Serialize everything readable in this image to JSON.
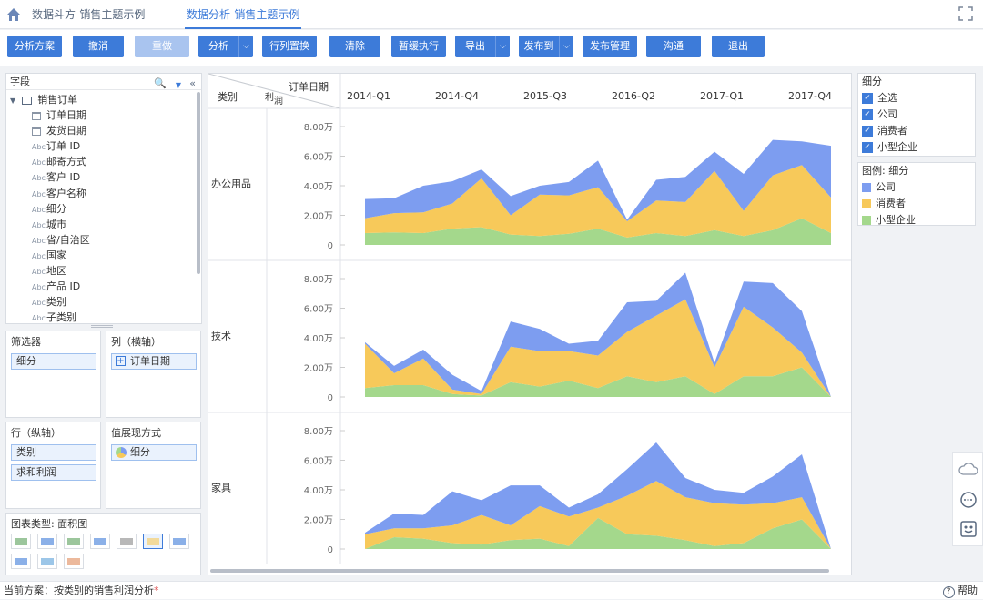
{
  "tabs": [
    {
      "label": "数据斗方-销售主题示例",
      "active": false
    },
    {
      "label": "数据分析-销售主题示例",
      "active": true
    }
  ],
  "toolbar": {
    "buttons": [
      {
        "label": "分析方案",
        "disabled": false,
        "dropdown": false
      },
      {
        "label": "撤消",
        "disabled": false,
        "dropdown": false
      },
      {
        "label": "重做",
        "disabled": true,
        "dropdown": false
      },
      {
        "label": "分析",
        "disabled": false,
        "dropdown": true
      },
      {
        "label": "行列置换",
        "disabled": false,
        "dropdown": false
      },
      {
        "label": "清除",
        "disabled": false,
        "dropdown": false
      },
      {
        "label": "暂缓执行",
        "disabled": false,
        "dropdown": false
      },
      {
        "label": "导出",
        "disabled": false,
        "dropdown": true
      },
      {
        "label": "发布到",
        "disabled": false,
        "dropdown": true
      },
      {
        "label": "发布管理",
        "disabled": false,
        "dropdown": false
      },
      {
        "label": "沟通",
        "disabled": false,
        "dropdown": false
      },
      {
        "label": "退出",
        "disabled": false,
        "dropdown": false
      }
    ]
  },
  "fields": {
    "title": "字段",
    "root": "销售订单",
    "items": [
      {
        "type": "date",
        "label": "订单日期"
      },
      {
        "type": "date",
        "label": "发货日期"
      },
      {
        "type": "Abc",
        "label": "订单 ID"
      },
      {
        "type": "Abc",
        "label": "邮寄方式"
      },
      {
        "type": "Abc",
        "label": "客户 ID"
      },
      {
        "type": "Abc",
        "label": "客户名称"
      },
      {
        "type": "Abc",
        "label": "细分"
      },
      {
        "type": "Abc",
        "label": "城市"
      },
      {
        "type": "Abc",
        "label": "省/自治区"
      },
      {
        "type": "Abc",
        "label": "国家"
      },
      {
        "type": "Abc",
        "label": "地区"
      },
      {
        "type": "Abc",
        "label": "产品 ID"
      },
      {
        "type": "Abc",
        "label": "类别"
      },
      {
        "type": "Abc",
        "label": "子类别"
      }
    ]
  },
  "filter": {
    "title": "筛选器",
    "chips": [
      "细分"
    ]
  },
  "columns": {
    "title": "列（横轴）",
    "chips": [
      "订单日期"
    ]
  },
  "rows": {
    "title": "行（纵轴）",
    "chips": [
      "类别",
      "求和利润"
    ]
  },
  "values": {
    "title": "值展现方式",
    "chips": [
      "细分"
    ]
  },
  "chart_type": {
    "title": "图表类型: 面积图"
  },
  "chart_header": {
    "category": "类别",
    "measure": "利润",
    "dimension": "订单日期"
  },
  "chart_data": {
    "type": "area",
    "stacked": true,
    "x_tick_labels": [
      "2014-Q1",
      "2014-Q4",
      "2015-Q3",
      "2016-Q2",
      "2017-Q1",
      "2017-Q4"
    ],
    "y_tick_labels": [
      "0",
      "2.00万",
      "4.00万",
      "6.00万",
      "8.00万"
    ],
    "ylim": [
      0,
      80000
    ],
    "legend_position": "right",
    "facets": [
      {
        "label": "办公用品",
        "series": [
          {
            "name": "小型企业",
            "values": [
              8000,
              8500,
              8000,
              11000,
              12000,
              7000,
              6000,
              7500,
              11000,
              5000,
              8000,
              6000,
              10000,
              6000,
              10000,
              18000,
              8000
            ]
          },
          {
            "name": "消费者",
            "values": [
              10000,
              13000,
              14000,
              17000,
              33000,
              13000,
              28000,
              26000,
              28000,
              11000,
              22000,
              23000,
              40000,
              17000,
              37000,
              36000,
              24000
            ]
          },
          {
            "name": "公司",
            "values": [
              13000,
              10000,
              18000,
              15000,
              6000,
              13000,
              6000,
              9000,
              18000,
              1000,
              14000,
              17000,
              13000,
              25000,
              24000,
              16000,
              35000
            ]
          }
        ]
      },
      {
        "label": "技术",
        "series": [
          {
            "name": "小型企业",
            "values": [
              6000,
              8000,
              8000,
              2000,
              1000,
              10000,
              7000,
              11000,
              6000,
              14000,
              10000,
              14000,
              2000,
              14000,
              14000,
              20000,
              0
            ]
          },
          {
            "name": "消费者",
            "values": [
              30000,
              8000,
              18000,
              3000,
              1000,
              24000,
              24000,
              20000,
              22000,
              30000,
              45000,
              52000,
              18000,
              47000,
              33000,
              10000,
              0
            ]
          },
          {
            "name": "公司",
            "values": [
              1000,
              5000,
              6000,
              10000,
              2000,
              17000,
              15000,
              5000,
              10000,
              20000,
              10000,
              18000,
              3000,
              17000,
              30000,
              28000,
              0
            ]
          }
        ]
      },
      {
        "label": "家具",
        "series": [
          {
            "name": "小型企业",
            "values": [
              0,
              8000,
              7000,
              4000,
              3000,
              6000,
              7000,
              2000,
              21000,
              10000,
              9000,
              6000,
              2000,
              4000,
              14000,
              20000,
              0
            ]
          },
          {
            "name": "消费者",
            "values": [
              10000,
              6000,
              7000,
              12000,
              20000,
              10000,
              22000,
              20000,
              7000,
              26000,
              37000,
              29000,
              29000,
              26000,
              17000,
              15000,
              0
            ]
          },
          {
            "name": "公司",
            "values": [
              1000,
              10000,
              9000,
              23000,
              10000,
              27000,
              14000,
              6000,
              9000,
              18000,
              26000,
              13000,
              9000,
              8000,
              18000,
              29000,
              0
            ]
          }
        ]
      }
    ]
  },
  "segment_filter": {
    "title": "细分",
    "items": [
      "全选",
      "公司",
      "消费者",
      "小型企业"
    ]
  },
  "legend": {
    "title": "图例: 细分",
    "items": [
      {
        "label": "公司",
        "color": "#7d9df0"
      },
      {
        "label": "消费者",
        "color": "#f7c95a"
      },
      {
        "label": "小型企业",
        "color": "#a4d88c"
      }
    ]
  },
  "status": {
    "label": "当前方案：按类别的销售利润分析",
    "help": "帮助"
  }
}
